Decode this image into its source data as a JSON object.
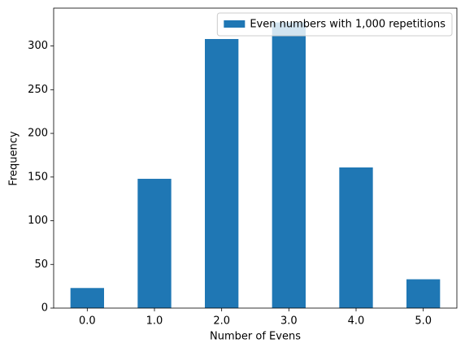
{
  "chart_data": {
    "type": "bar",
    "categories": [
      "0.0",
      "1.0",
      "2.0",
      "3.0",
      "4.0",
      "5.0"
    ],
    "series": [
      {
        "name": "Even numbers with 1,000 repetitions",
        "color": "#1f77b4",
        "values": [
          23,
          148,
          308,
          327,
          161,
          33
        ]
      }
    ],
    "xlabel": "Number of Evens",
    "ylabel": "Frequency",
    "ylim": [
      0,
      343.35
    ],
    "yticks": [
      0,
      50,
      100,
      150,
      200,
      250,
      300
    ],
    "legend": "upper right",
    "grid": false
  }
}
